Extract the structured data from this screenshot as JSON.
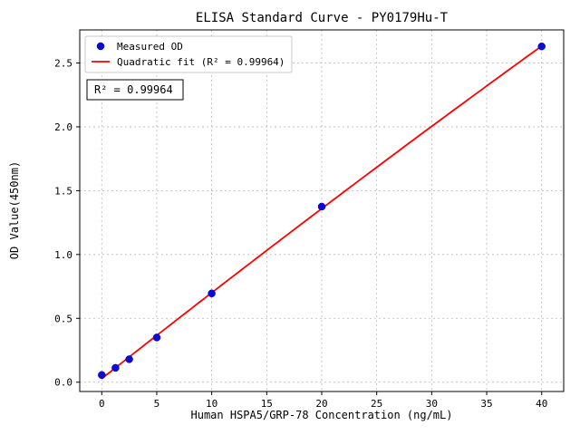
{
  "chart_data": {
    "type": "scatter",
    "title": "ELISA Standard Curve - PY0179Hu-T",
    "xlabel": "Human HSPA5/GRP-78 Concentration (ng/mL)",
    "ylabel": "OD Value(450nm)",
    "xlim": [
      -2,
      42
    ],
    "ylim": [
      -0.073,
      2.759
    ],
    "xticks": [
      0,
      5,
      10,
      15,
      20,
      25,
      30,
      35,
      40
    ],
    "yticks": [
      0,
      0.5,
      1,
      1.5,
      2,
      2.5
    ],
    "grid": true,
    "annotation": "R² = 0.99964",
    "legend": {
      "position": "upper-left",
      "entries": [
        {
          "label": "Measured OD",
          "marker": "dot",
          "color": "#0b0bd6"
        },
        {
          "label": "Quadratic fit (R² = 0.99964)",
          "marker": "line",
          "color": "#ff0000"
        }
      ]
    },
    "series": [
      {
        "name": "Measured OD",
        "type": "scatter",
        "color": "#0b0bd6",
        "points": [
          [
            0,
            0.056
          ],
          [
            1.25,
            0.112
          ],
          [
            2.5,
            0.18
          ],
          [
            5,
            0.35
          ],
          [
            10,
            0.695
          ],
          [
            20,
            1.375
          ],
          [
            40,
            2.63
          ]
        ]
      },
      {
        "name": "Quadratic fit",
        "type": "line",
        "color": "#ff0000",
        "fit": "quadratic",
        "r_squared": 0.99964
      }
    ]
  }
}
